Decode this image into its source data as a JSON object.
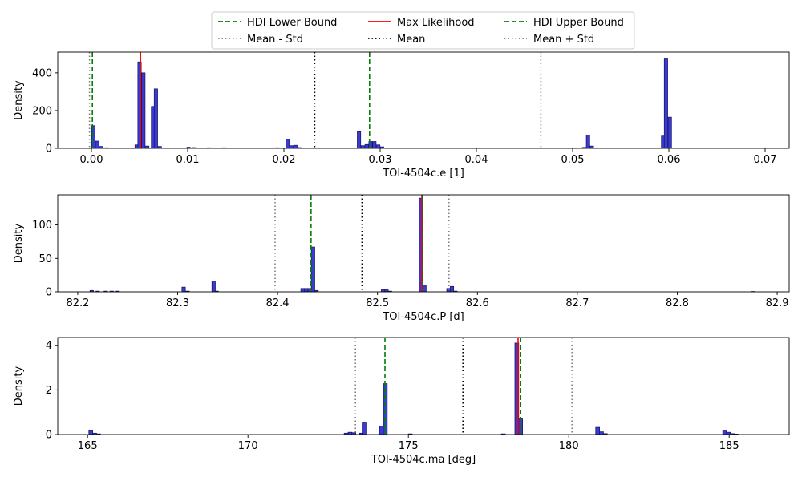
{
  "chart_data": [
    {
      "type": "histogram",
      "xlabel": "TOI-4504c.e [1]",
      "ylabel": "Density",
      "xlim": [
        -0.0035,
        0.0725
      ],
      "ylim": [
        0,
        510
      ],
      "xticks": [
        0.0,
        0.01,
        0.02,
        0.03,
        0.04,
        0.05,
        0.06,
        0.07
      ],
      "xtick_labels": [
        "0.00",
        "0.01",
        "0.02",
        "0.03",
        "0.04",
        "0.05",
        "0.06",
        "0.07"
      ],
      "yticks": [
        0,
        200,
        400
      ],
      "yticks_labels": [
        "0",
        "200",
        "400"
      ],
      "bin_width": 0.00035,
      "bars": [
        {
          "x": 0.0002,
          "value": 120
        },
        {
          "x": 0.0006,
          "value": 38
        },
        {
          "x": 0.001,
          "value": 10
        },
        {
          "x": 0.0016,
          "value": 3
        },
        {
          "x": 0.0047,
          "value": 18
        },
        {
          "x": 0.005,
          "value": 458
        },
        {
          "x": 0.0054,
          "value": 400
        },
        {
          "x": 0.0058,
          "value": 12
        },
        {
          "x": 0.0064,
          "value": 222
        },
        {
          "x": 0.0067,
          "value": 315
        },
        {
          "x": 0.0071,
          "value": 10
        },
        {
          "x": 0.0101,
          "value": 6
        },
        {
          "x": 0.0107,
          "value": 4
        },
        {
          "x": 0.0122,
          "value": 3
        },
        {
          "x": 0.0138,
          "value": 3
        },
        {
          "x": 0.0193,
          "value": 3
        },
        {
          "x": 0.0204,
          "value": 48
        },
        {
          "x": 0.0208,
          "value": 14
        },
        {
          "x": 0.0212,
          "value": 16
        },
        {
          "x": 0.0216,
          "value": 4
        },
        {
          "x": 0.0278,
          "value": 88
        },
        {
          "x": 0.0282,
          "value": 14
        },
        {
          "x": 0.0286,
          "value": 20
        },
        {
          "x": 0.029,
          "value": 36
        },
        {
          "x": 0.0294,
          "value": 36
        },
        {
          "x": 0.0298,
          "value": 18
        },
        {
          "x": 0.0302,
          "value": 8
        },
        {
          "x": 0.0512,
          "value": 5
        },
        {
          "x": 0.0516,
          "value": 70
        },
        {
          "x": 0.052,
          "value": 12
        },
        {
          "x": 0.0594,
          "value": 65
        },
        {
          "x": 0.0597,
          "value": 478
        },
        {
          "x": 0.0601,
          "value": 165
        }
      ],
      "lines": [
        {
          "series": "HDI Lower Bound",
          "x": 0.0001
        },
        {
          "series": "Max Likelihood",
          "x": 0.0051
        },
        {
          "series": "Mean",
          "x": 0.0232
        },
        {
          "series": "HDI Upper Bound",
          "x": 0.0289
        },
        {
          "series": "Mean - Std",
          "x": -0.0002
        },
        {
          "series": "Mean + Std",
          "x": 0.0467
        }
      ]
    },
    {
      "type": "histogram",
      "xlabel": "TOI-4504c.P [d]",
      "ylabel": "Density",
      "xlim": [
        82.18,
        82.912
      ],
      "ylim": [
        0,
        145
      ],
      "xticks": [
        82.2,
        82.3,
        82.4,
        82.5,
        82.6,
        82.7,
        82.8,
        82.9
      ],
      "xtick_labels": [
        "82.2",
        "82.3",
        "82.4",
        "82.5",
        "82.6",
        "82.7",
        "82.8",
        "82.9"
      ],
      "yticks": [
        0,
        50,
        100
      ],
      "yticks_labels": [
        "0",
        "50",
        "100"
      ],
      "bin_width": 0.0034,
      "bars": [
        {
          "x": 82.214,
          "value": 2
        },
        {
          "x": 82.22,
          "value": 1
        },
        {
          "x": 82.228,
          "value": 1
        },
        {
          "x": 82.234,
          "value": 1
        },
        {
          "x": 82.24,
          "value": 1
        },
        {
          "x": 82.306,
          "value": 7
        },
        {
          "x": 82.31,
          "value": 1
        },
        {
          "x": 82.336,
          "value": 16
        },
        {
          "x": 82.339,
          "value": 1
        },
        {
          "x": 82.425,
          "value": 5
        },
        {
          "x": 82.4285,
          "value": 5
        },
        {
          "x": 82.432,
          "value": 5
        },
        {
          "x": 82.4355,
          "value": 67
        },
        {
          "x": 82.439,
          "value": 2
        },
        {
          "x": 82.5055,
          "value": 3
        },
        {
          "x": 82.509,
          "value": 3
        },
        {
          "x": 82.5125,
          "value": 1
        },
        {
          "x": 82.5435,
          "value": 140
        },
        {
          "x": 82.547,
          "value": 10
        },
        {
          "x": 82.571,
          "value": 5
        },
        {
          "x": 82.5745,
          "value": 8
        },
        {
          "x": 82.578,
          "value": 1
        },
        {
          "x": 82.876,
          "value": 0.5
        }
      ],
      "lines": [
        {
          "series": "HDI Lower Bound",
          "x": 82.4335
        },
        {
          "series": "Max Likelihood",
          "x": 82.5444
        },
        {
          "series": "Mean",
          "x": 82.4845
        },
        {
          "series": "HDI Upper Bound",
          "x": 82.5452
        },
        {
          "series": "Mean - Std",
          "x": 82.3975
        },
        {
          "series": "Mean + Std",
          "x": 82.5715
        }
      ]
    },
    {
      "type": "histogram",
      "xlabel": "TOI-4504c.ma [deg]",
      "ylabel": "Density",
      "xlim": [
        164.07,
        186.87
      ],
      "ylim": [
        0,
        4.35
      ],
      "xticks": [
        165,
        170,
        175,
        180,
        185
      ],
      "xtick_labels": [
        "165",
        "170",
        "175",
        "180",
        "185"
      ],
      "yticks": [
        0,
        2,
        4
      ],
      "yticks_labels": [
        "0",
        "2",
        "4"
      ],
      "bin_width": 0.12,
      "bars": [
        {
          "x": 165.1,
          "value": 0.18
        },
        {
          "x": 165.22,
          "value": 0.06
        },
        {
          "x": 165.34,
          "value": 0.03
        },
        {
          "x": 173.06,
          "value": 0.06
        },
        {
          "x": 173.18,
          "value": 0.1
        },
        {
          "x": 173.3,
          "value": 0.08
        },
        {
          "x": 173.54,
          "value": 0.06
        },
        {
          "x": 173.62,
          "value": 0.52
        },
        {
          "x": 174.16,
          "value": 0.38
        },
        {
          "x": 174.28,
          "value": 2.28
        },
        {
          "x": 175.06,
          "value": 0.03
        },
        {
          "x": 177.96,
          "value": 0.03
        },
        {
          "x": 178.38,
          "value": 4.1
        },
        {
          "x": 178.5,
          "value": 0.7
        },
        {
          "x": 180.9,
          "value": 0.32
        },
        {
          "x": 181.02,
          "value": 0.12
        },
        {
          "x": 181.14,
          "value": 0.04
        },
        {
          "x": 184.86,
          "value": 0.16
        },
        {
          "x": 184.98,
          "value": 0.1
        },
        {
          "x": 185.1,
          "value": 0.04
        },
        {
          "x": 185.22,
          "value": 0.02
        }
      ],
      "lines": [
        {
          "series": "HDI Lower Bound",
          "x": 174.27
        },
        {
          "series": "Max Likelihood",
          "x": 178.42
        },
        {
          "series": "Mean",
          "x": 176.7
        },
        {
          "series": "HDI Upper Bound",
          "x": 178.5
        },
        {
          "series": "Mean - Std",
          "x": 173.35
        },
        {
          "series": "Mean + Std",
          "x": 180.1
        }
      ]
    }
  ],
  "legend": {
    "placement": "top-center",
    "entries": [
      {
        "label": "HDI Lower Bound",
        "color": "#008000",
        "style": "dashed"
      },
      {
        "label": "Max Likelihood",
        "color": "#ff0000",
        "style": "solid"
      },
      {
        "label": "HDI Upper Bound",
        "color": "#008000",
        "style": "dashed"
      },
      {
        "label": "Mean - Std",
        "color": "#808080",
        "style": "dotted"
      },
      {
        "label": "Mean",
        "color": "#000000",
        "style": "dotted"
      },
      {
        "label": "Mean + Std",
        "color": "#808080",
        "style": "dotted"
      }
    ]
  },
  "colors": {
    "bar_fill": "#3a3ad8",
    "bar_edge": "#1a1a66"
  }
}
